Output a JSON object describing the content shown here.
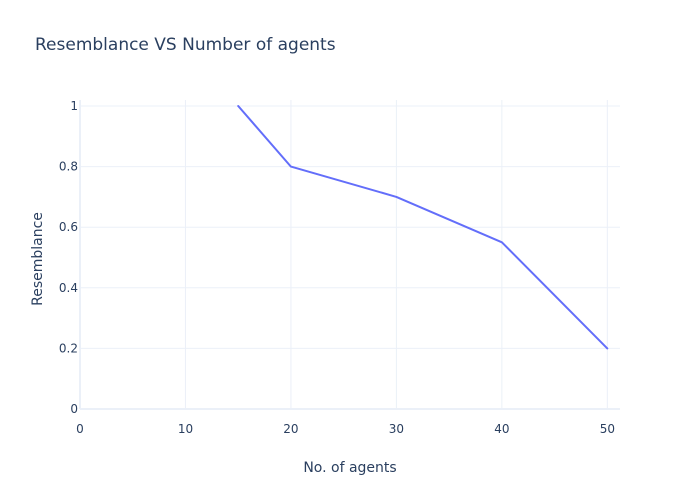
{
  "chart_data": {
    "type": "line",
    "title": "Resemblance VS Number of agents",
    "xlabel": "No. of agents",
    "ylabel": "Resemblance",
    "x": [
      15,
      20,
      30,
      40,
      50
    ],
    "series": [
      {
        "values": [
          1.0,
          0.8,
          0.7,
          0.55,
          0.2
        ]
      }
    ],
    "xlim": [
      0,
      51.2
    ],
    "ylim": [
      0,
      1.0
    ],
    "xticks": [
      0,
      10,
      20,
      30,
      40,
      50
    ],
    "yticks": [
      0,
      0.2,
      0.4,
      0.6,
      0.8,
      1
    ],
    "xtick_labels": [
      "0",
      "10",
      "20",
      "30",
      "40",
      "50"
    ],
    "ytick_labels": [
      "0",
      "0.2",
      "0.4",
      "0.6",
      "0.8",
      "1"
    ],
    "grid": true,
    "legend": "none",
    "colors": {
      "line": "#636efa",
      "text": "#2a3f5f",
      "grid": "#ebf0f8"
    }
  }
}
